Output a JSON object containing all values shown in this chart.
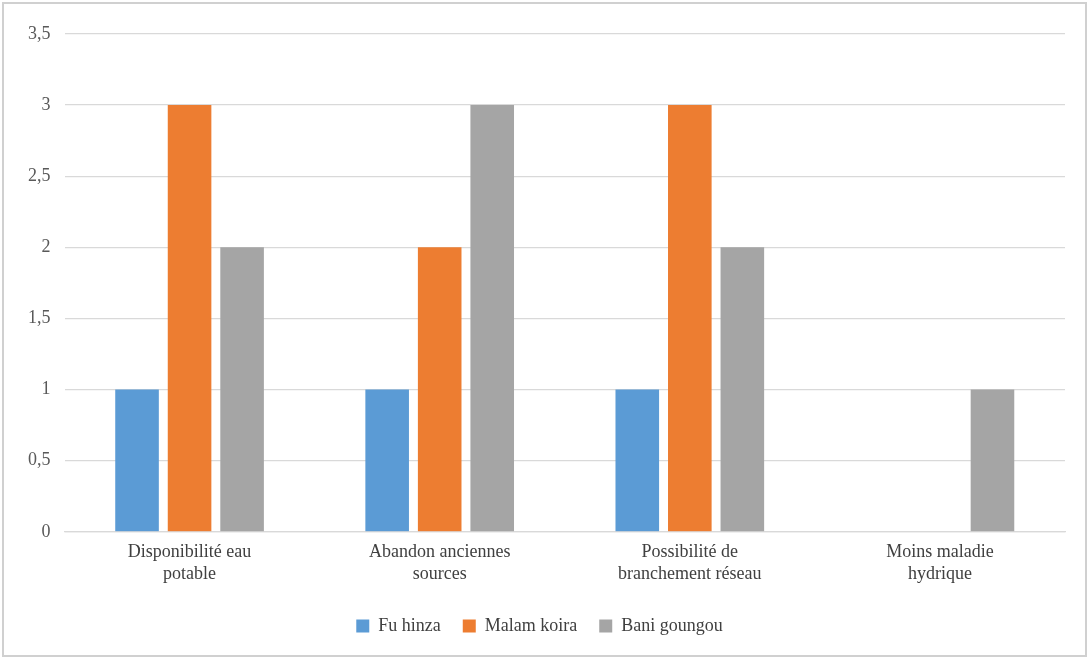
{
  "chart_data": {
    "type": "bar",
    "categories": [
      "Disponibilité eau potable",
      "Abandon anciennes sources",
      "Possibilité de branchement réseau",
      "Moins maladie hydrique"
    ],
    "series": [
      {
        "name": "Fu hinza",
        "color": "#5b9bd5",
        "values": [
          1,
          1,
          1,
          0
        ]
      },
      {
        "name": "Malam koira",
        "color": "#ed7d31",
        "values": [
          3,
          2,
          3,
          0
        ]
      },
      {
        "name": "Bani goungou",
        "color": "#a5a5a5",
        "values": [
          2,
          3,
          2,
          1
        ]
      }
    ],
    "ylim": [
      0,
      3.5
    ],
    "yticks": [
      0,
      {
        "value": 0.5,
        "label": "0,5"
      },
      1,
      {
        "value": 1.5,
        "label": "1,5"
      },
      2,
      {
        "value": 2.5,
        "label": "2,5"
      },
      3,
      {
        "value": 3.5,
        "label": "3,5"
      }
    ],
    "grid": "y",
    "legend": "bottom"
  }
}
